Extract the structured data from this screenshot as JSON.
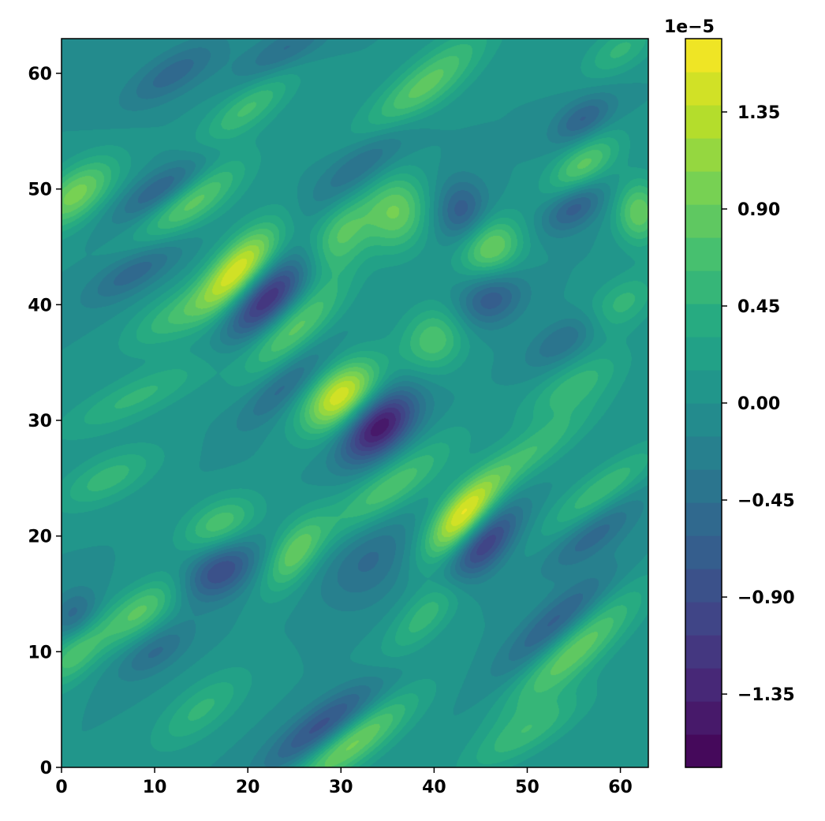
{
  "chart_data": {
    "type": "heatmap",
    "subtype": "filled-contour",
    "colormap": "viridis",
    "title": "",
    "xlabel": "",
    "ylabel": "",
    "xlim": [
      0,
      63
    ],
    "ylim": [
      0,
      63
    ],
    "x_ticks": [
      0,
      10,
      20,
      30,
      40,
      50,
      60
    ],
    "y_ticks": [
      0,
      10,
      20,
      30,
      40,
      50,
      60
    ],
    "x_tick_labels": [
      "0",
      "10",
      "20",
      "30",
      "40",
      "50",
      "60"
    ],
    "y_tick_labels": [
      "0",
      "10",
      "20",
      "30",
      "40",
      "50",
      "60"
    ],
    "grid": false,
    "colorbar": {
      "offset_label": "1e−5",
      "multiplier": 1e-05,
      "vmin": -1.69,
      "vmax": 1.69,
      "n_levels": 22,
      "ticks": [
        1.35,
        0.9,
        0.45,
        0.0,
        -0.45,
        -0.9,
        -1.35
      ],
      "tick_labels": [
        "1.35",
        "0.90",
        "0.45",
        "0.00",
        "−0.45",
        "−0.90",
        "−1.35"
      ]
    },
    "features": [
      {
        "x": 30,
        "y": 32,
        "value": 1.55,
        "sx": 3.2,
        "sy": 1.8,
        "angle": 30
      },
      {
        "x": 34,
        "y": 29.5,
        "value": -1.55,
        "sx": 3.2,
        "sy": 1.8,
        "angle": 30
      },
      {
        "x": 19,
        "y": 43,
        "value": 1.5,
        "sx": 3.8,
        "sy": 1.6,
        "angle": 40
      },
      {
        "x": 22,
        "y": 40.5,
        "value": -1.3,
        "sx": 3.5,
        "sy": 1.6,
        "angle": 35
      },
      {
        "x": 43,
        "y": 21.5,
        "value": 1.5,
        "sx": 3.5,
        "sy": 1.5,
        "angle": 40
      },
      {
        "x": 45,
        "y": 19,
        "value": -1.3,
        "sx": 3.5,
        "sy": 1.5,
        "angle": 40
      },
      {
        "x": 46,
        "y": 45,
        "value": 1.0,
        "sx": 2.5,
        "sy": 1.8,
        "angle": 15
      },
      {
        "x": 46,
        "y": 40.5,
        "value": -0.75,
        "sx": 2.6,
        "sy": 1.6,
        "angle": 15
      },
      {
        "x": 38,
        "y": 58,
        "value": 1.0,
        "sx": 6.0,
        "sy": 1.6,
        "angle": 35
      },
      {
        "x": 33,
        "y": 53,
        "value": -0.8,
        "sx": 5.0,
        "sy": 1.5,
        "angle": 35
      },
      {
        "x": 43,
        "y": 48,
        "value": -0.75,
        "sx": 2.0,
        "sy": 2.0,
        "angle": 0
      },
      {
        "x": 1.5,
        "y": 49.5,
        "value": 1.0,
        "sx": 3.5,
        "sy": 1.6,
        "angle": 30
      },
      {
        "x": 14,
        "y": 49,
        "value": 0.9,
        "sx": 4.5,
        "sy": 1.5,
        "angle": 30
      },
      {
        "x": 11,
        "y": 50,
        "value": -0.75,
        "sx": 4.0,
        "sy": 1.2,
        "angle": 25
      },
      {
        "x": 17,
        "y": 17,
        "value": -0.95,
        "sx": 3.0,
        "sy": 1.6,
        "angle": 20
      },
      {
        "x": 25,
        "y": 18.5,
        "value": 0.85,
        "sx": 3.0,
        "sy": 1.5,
        "angle": 45
      },
      {
        "x": 17,
        "y": 21,
        "value": 0.75,
        "sx": 3.0,
        "sy": 1.5,
        "angle": 20
      },
      {
        "x": 8.5,
        "y": 13.5,
        "value": 0.8,
        "sx": 3.5,
        "sy": 1.4,
        "angle": 30
      },
      {
        "x": 1.5,
        "y": 10,
        "value": 0.75,
        "sx": 3.0,
        "sy": 1.4,
        "angle": 40
      },
      {
        "x": 1.5,
        "y": 13,
        "value": -0.6,
        "sx": 2.0,
        "sy": 1.5,
        "angle": 30
      },
      {
        "x": 31,
        "y": 2,
        "value": 1.0,
        "sx": 5.5,
        "sy": 1.4,
        "angle": 30
      },
      {
        "x": 28,
        "y": 3.5,
        "value": -0.9,
        "sx": 5.0,
        "sy": 1.3,
        "angle": 30
      },
      {
        "x": 33,
        "y": 18,
        "value": -0.5,
        "sx": 4.0,
        "sy": 2.5,
        "angle": 30
      },
      {
        "x": 35,
        "y": 24,
        "value": 0.8,
        "sx": 5.5,
        "sy": 1.5,
        "angle": 30
      },
      {
        "x": 55,
        "y": 10,
        "value": 0.9,
        "sx": 6.0,
        "sy": 1.5,
        "angle": 35
      },
      {
        "x": 53,
        "y": 12.5,
        "value": -0.7,
        "sx": 5.0,
        "sy": 1.3,
        "angle": 35
      },
      {
        "x": 56,
        "y": 52,
        "value": 0.85,
        "sx": 3.0,
        "sy": 1.4,
        "angle": 30
      },
      {
        "x": 55,
        "y": 48.5,
        "value": -0.75,
        "sx": 2.5,
        "sy": 1.3,
        "angle": 25
      },
      {
        "x": 62,
        "y": 48,
        "value": 0.9,
        "sx": 1.8,
        "sy": 2.0,
        "angle": 0
      },
      {
        "x": 56,
        "y": 56,
        "value": -0.65,
        "sx": 2.5,
        "sy": 1.2,
        "angle": 25
      },
      {
        "x": 25,
        "y": 38,
        "value": 0.85,
        "sx": 4.5,
        "sy": 1.5,
        "angle": 35
      },
      {
        "x": 40,
        "y": 37,
        "value": 0.75,
        "sx": 2.5,
        "sy": 2.0,
        "angle": 20
      },
      {
        "x": 24,
        "y": 33,
        "value": -0.55,
        "sx": 4.0,
        "sy": 1.2,
        "angle": 35
      },
      {
        "x": 36,
        "y": 48,
        "value": 0.9,
        "sx": 2.5,
        "sy": 2.3,
        "angle": 45
      },
      {
        "x": 30,
        "y": 46,
        "value": 0.8,
        "sx": 3.0,
        "sy": 1.8,
        "angle": 45
      },
      {
        "x": 8,
        "y": 32,
        "value": 0.5,
        "sx": 6.0,
        "sy": 1.3,
        "angle": 20
      },
      {
        "x": 5,
        "y": 25,
        "value": 0.55,
        "sx": 4.0,
        "sy": 1.4,
        "angle": 20
      },
      {
        "x": 12,
        "y": 39,
        "value": 0.55,
        "sx": 4.0,
        "sy": 1.4,
        "angle": 25
      },
      {
        "x": 8,
        "y": 43,
        "value": -0.6,
        "sx": 4.0,
        "sy": 1.2,
        "angle": 25
      },
      {
        "x": 20,
        "y": 57,
        "value": 0.65,
        "sx": 4.0,
        "sy": 1.3,
        "angle": 30
      },
      {
        "x": 12,
        "y": 60,
        "value": -0.55,
        "sx": 4.0,
        "sy": 1.3,
        "angle": 25
      },
      {
        "x": 50,
        "y": 27,
        "value": 0.6,
        "sx": 6.0,
        "sy": 1.3,
        "angle": 30
      },
      {
        "x": 58,
        "y": 24,
        "value": 0.6,
        "sx": 5.0,
        "sy": 1.2,
        "angle": 30
      },
      {
        "x": 57,
        "y": 20,
        "value": -0.55,
        "sx": 4.0,
        "sy": 1.2,
        "angle": 30
      },
      {
        "x": 50,
        "y": 3,
        "value": 0.55,
        "sx": 5.0,
        "sy": 1.3,
        "angle": 25
      },
      {
        "x": 15,
        "y": 5,
        "value": 0.5,
        "sx": 4.0,
        "sy": 1.5,
        "angle": 30
      },
      {
        "x": 10,
        "y": 10,
        "value": -0.5,
        "sx": 3.0,
        "sy": 1.2,
        "angle": 25
      },
      {
        "x": 40,
        "y": 14,
        "value": 0.65,
        "sx": 4.5,
        "sy": 1.4,
        "angle": 40
      },
      {
        "x": 55,
        "y": 33,
        "value": 0.55,
        "sx": 4.0,
        "sy": 1.3,
        "angle": 25
      },
      {
        "x": 60,
        "y": 40,
        "value": 0.55,
        "sx": 3.0,
        "sy": 1.5,
        "angle": 25
      },
      {
        "x": 54,
        "y": 37,
        "value": -0.5,
        "sx": 3.0,
        "sy": 1.2,
        "angle": 25
      },
      {
        "x": 24,
        "y": 62,
        "value": -0.5,
        "sx": 4.0,
        "sy": 1.2,
        "angle": 25
      },
      {
        "x": 60,
        "y": 62,
        "value": 0.5,
        "sx": 3.0,
        "sy": 1.3,
        "angle": 25
      }
    ]
  }
}
